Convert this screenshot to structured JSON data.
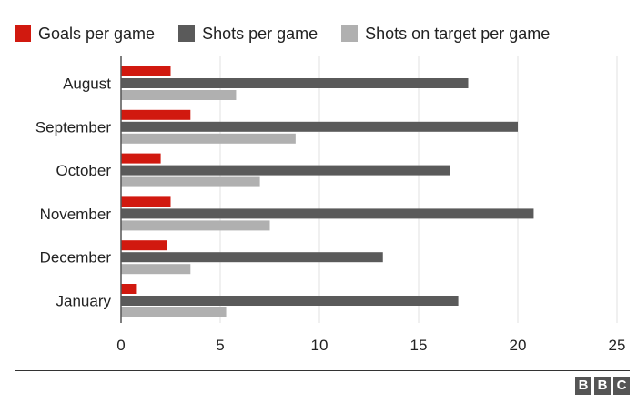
{
  "chart_data": {
    "type": "bar",
    "orientation": "horizontal",
    "categories": [
      "August",
      "September",
      "October",
      "November",
      "December",
      "January"
    ],
    "series": [
      {
        "name": "Goals per game",
        "color": "#d1190f",
        "values": [
          2.5,
          3.5,
          2.0,
          2.5,
          2.3,
          0.8
        ]
      },
      {
        "name": "Shots per game",
        "color": "#5a5a5a",
        "values": [
          17.5,
          20.0,
          16.6,
          20.8,
          13.2,
          17.0
        ]
      },
      {
        "name": "Shots on target per game",
        "color": "#b0b0b0",
        "values": [
          5.8,
          8.8,
          7.0,
          7.5,
          3.5,
          5.3
        ]
      }
    ],
    "xlim": [
      0,
      25
    ],
    "xticks": [
      0,
      5,
      10,
      15,
      20,
      25
    ],
    "grid": true,
    "legend_position": "top"
  },
  "branding": {
    "logo_letters": [
      "B",
      "B",
      "C"
    ]
  }
}
